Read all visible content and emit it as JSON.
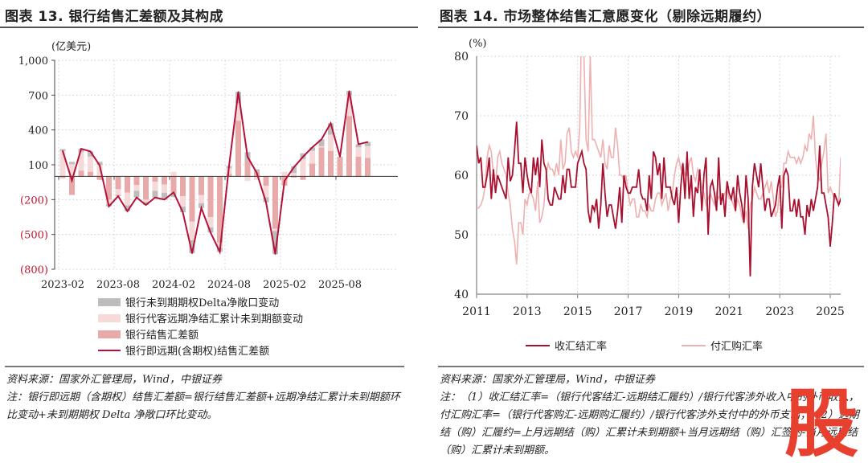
{
  "left": {
    "title": "图表 13. 银行结售汇差额及其构成",
    "source": "资料来源：国家外汇管理局，Wind，中银证券",
    "note": "注：银行即远期（含期权）结售汇差额=银行结售汇差额+远期净结汇累计未到期额环比变动+未到期期权 Delta 净敞口环比变动。"
  },
  "right": {
    "title": "图表 14. 市场整体结售汇意愿变化（剔除远期履约）",
    "source": "资料来源：国家外汇管理局，Wind，中银证券",
    "note": "注：（1）收汇结汇率=（银行代客结汇-远期结汇履约）/银行代客涉外收入中的外币收入，付汇购汇率=（银行代客购汇-远期购汇履约）/银行代客涉外支付中的外币支出；（2）远期结（购）汇履约=上月远期结（购）汇累计未到期额+当月远期结（购）汇签约-当月远期结（购）汇累计未到期额。"
  },
  "watermark": "股",
  "colors": {
    "line": "#b5123a",
    "bank": "#e8a9a9",
    "fwd": "#f6d9d9",
    "delta": "#bdbdbd",
    "purch": "#eeb0b0",
    "sett": "#a8102f"
  },
  "chart_data": [
    {
      "type": "bar+line",
      "unit_label": "(亿美元)",
      "ylim": [
        -800,
        1000
      ],
      "yticks": [
        1000,
        700,
        400,
        100,
        -200,
        -500,
        -800
      ],
      "ytick_labels": [
        "1,000",
        "700",
        "400",
        "100",
        "(200)",
        "(500)",
        "(800)"
      ],
      "xtick_labels": [
        "2023-02",
        "2023-08",
        "2024-02",
        "2024-08",
        "2025-02",
        "2025-08"
      ],
      "xtick_index": [
        0,
        6,
        12,
        18,
        24,
        30
      ],
      "months": [
        "2023-02",
        "2023-03",
        "2023-04",
        "2023-05",
        "2023-06",
        "2023-07",
        "2023-08",
        "2023-09",
        "2023-10",
        "2023-11",
        "2023-12",
        "2024-01",
        "2024-02",
        "2024-03",
        "2024-04",
        "2024-05",
        "2024-06",
        "2024-07",
        "2024-08",
        "2024-09",
        "2024-10",
        "2024-11",
        "2024-12",
        "2025-01",
        "2025-02",
        "2025-03",
        "2025-04",
        "2025-05",
        "2025-06",
        "2025-07",
        "2025-08",
        "2025-09",
        "2025-10",
        "2025-11"
      ],
      "series": [
        {
          "name": "银行未到期期权Delta净敞口变动",
          "key": "delta",
          "values": [
            15,
            20,
            28,
            45,
            25,
            -18,
            -10,
            -50,
            -57,
            -26,
            -57,
            -60,
            -38,
            -49,
            -112,
            -42,
            -44,
            -35,
            20,
            98,
            74,
            20,
            -43,
            -199,
            -9,
            57,
            49,
            30,
            59,
            98,
            9,
            35,
            27,
            36
          ]
        },
        {
          "name": "银行代客远期净结汇累计未到期额变动",
          "key": "fwd",
          "values": [
            220,
            105,
            160,
            130,
            100,
            -40,
            -50,
            -110,
            -50,
            -20,
            -80,
            -70,
            40,
            -90,
            -160,
            -70,
            -90,
            -45,
            50,
            150,
            -40,
            -30,
            -100,
            -20,
            40,
            30,
            150,
            110,
            10,
            140,
            0,
            180,
            80,
            100
          ]
        },
        {
          "name": "银行结售汇差额",
          "key": "bank",
          "values": [
            -15,
            -160,
            50,
            40,
            -30,
            -200,
            -110,
            -140,
            -75,
            -200,
            -45,
            -70,
            -140,
            -170,
            -390,
            -160,
            -350,
            -570,
            20,
            480,
            135,
            40,
            -80,
            -450,
            -70,
            -10,
            -30,
            110,
            250,
            220,
            160,
            520,
            170,
            160
          ]
        },
        {
          "name": "银行即远期(含期权)结售汇差额",
          "key": "line",
          "values": [
            220,
            -35,
            238,
            215,
            95,
            -258,
            -170,
            -300,
            -182,
            -246,
            -182,
            -200,
            -138,
            -309,
            -662,
            -272,
            -484,
            -650,
            90,
            728,
            169,
            30,
            -223,
            -669,
            -39,
            77,
            169,
            250,
            319,
            458,
            169,
            735,
            277,
            296
          ]
        }
      ]
    },
    {
      "type": "line",
      "unit_label": "(%)",
      "ylim": [
        40,
        80
      ],
      "yticks": [
        40,
        50,
        60,
        70,
        80
      ],
      "xticks": [
        2011,
        2013,
        2015,
        2017,
        2019,
        2021,
        2023,
        2025
      ],
      "start": "2011-01",
      "series": [
        {
          "name": "收汇结汇率",
          "key": "sett",
          "values": [
            65,
            62,
            63,
            58,
            58,
            60,
            63,
            56,
            61,
            57,
            60,
            59,
            58,
            57,
            56,
            63,
            59,
            60,
            64,
            69,
            62,
            62,
            57,
            63,
            60,
            58,
            57,
            63,
            60,
            63,
            58,
            66,
            62,
            61,
            56,
            55,
            55,
            58,
            57,
            56,
            56,
            60,
            57,
            61,
            61,
            58,
            58,
            58,
            62,
            63,
            64,
            62,
            61,
            54,
            52,
            55,
            54,
            56,
            51,
            55,
            62,
            57,
            53,
            55,
            55,
            53,
            51,
            54,
            58,
            52,
            60,
            58,
            57,
            57,
            58,
            58,
            58,
            61,
            57,
            56,
            56,
            54,
            60,
            56,
            64,
            63,
            60,
            62,
            56,
            63,
            58,
            58,
            58,
            56,
            55,
            58,
            52,
            58,
            62,
            56,
            64,
            56,
            60,
            53,
            58,
            57,
            61,
            54,
            60,
            63,
            50,
            58,
            59,
            57,
            54,
            63,
            55,
            57,
            53,
            59,
            57,
            56,
            58,
            54,
            60,
            57,
            55,
            52,
            60,
            56,
            43,
            58,
            62,
            60,
            58,
            62,
            58,
            54,
            56,
            56,
            53,
            54,
            55,
            58,
            60,
            51,
            60,
            61,
            60,
            54,
            54,
            56,
            53,
            56,
            53,
            53,
            50,
            55,
            53,
            56,
            54,
            56,
            58,
            65,
            57,
            57,
            55,
            53,
            48,
            52,
            57,
            56,
            55,
            56,
            55,
            63,
            54,
            52
          ]
        },
        {
          "name": "付汇购汇率",
          "key": "purch",
          "values": [
            54.5,
            54.5,
            55,
            56,
            58,
            63,
            65,
            64,
            60,
            58,
            63,
            64,
            62,
            61,
            60,
            57,
            55,
            51,
            49,
            45,
            52,
            52,
            50,
            56,
            55,
            57,
            57,
            56,
            54,
            59,
            52,
            53,
            55,
            60,
            62,
            61,
            61,
            60,
            62,
            60,
            66,
            61,
            62,
            67,
            68,
            64,
            63,
            64,
            63,
            68,
            88,
            80,
            66,
            64,
            80,
            66,
            66,
            65,
            64,
            63,
            66,
            62,
            61,
            65,
            63,
            63,
            68,
            65,
            60,
            60,
            59,
            60,
            57,
            55,
            56,
            56,
            53,
            53,
            55,
            54,
            54,
            53,
            55,
            54,
            54,
            56,
            57,
            57,
            55,
            56,
            57,
            54,
            56,
            57,
            60,
            62,
            63,
            61,
            62,
            60,
            60,
            62,
            63,
            60,
            59,
            61,
            60,
            58,
            57,
            55,
            56,
            57,
            56,
            55,
            57,
            56,
            57,
            56,
            57,
            58,
            56,
            56,
            55,
            54,
            56,
            55,
            53,
            52,
            54,
            51,
            55,
            56,
            58,
            57,
            56,
            56,
            57,
            58,
            59,
            57,
            59,
            56,
            53,
            54,
            58,
            58,
            62,
            62,
            64,
            63,
            63,
            63,
            62,
            63,
            62,
            63,
            65,
            64,
            67,
            66,
            70,
            63,
            60,
            59,
            62,
            64,
            67,
            57,
            58,
            57,
            56,
            56,
            55,
            63,
            62,
            60,
            62,
            60
          ]
        }
      ]
    }
  ]
}
